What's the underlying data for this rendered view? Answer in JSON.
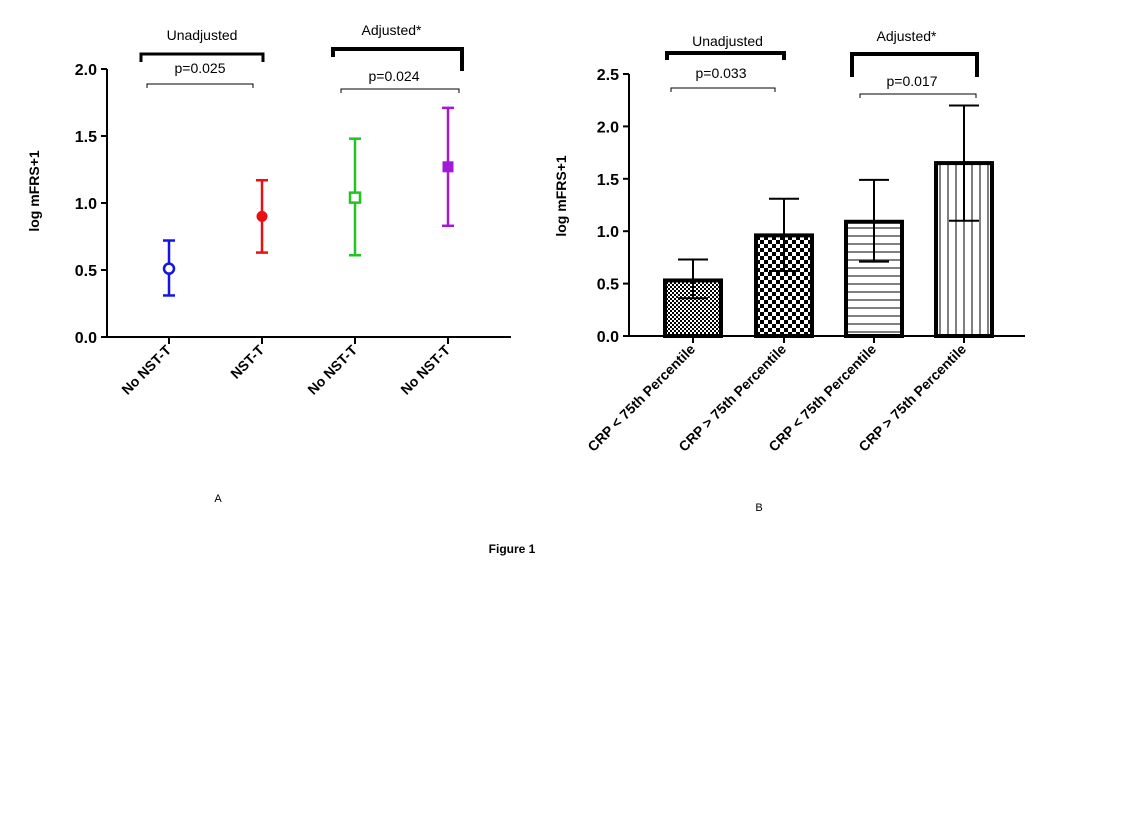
{
  "figure_caption": "Figure 1",
  "chart_data": [
    {
      "panel_label": "A",
      "type": "scatter",
      "subtype": "mean-with-error-bars",
      "ylabel": "log mFRS+1",
      "ylim": [
        0,
        2.0
      ],
      "yticks": [
        "0.0",
        "0.5",
        "1.0",
        "1.5",
        "2.0"
      ],
      "categories": [
        "No NST-T",
        "NST-T",
        "No NST-T",
        "No NST-T"
      ],
      "values": [
        0.51,
        0.9,
        1.04,
        1.27
      ],
      "error_low": [
        0.31,
        0.63,
        0.61,
        0.83
      ],
      "error_high": [
        0.72,
        1.17,
        1.48,
        1.71
      ],
      "colors": [
        "#1414e6",
        "#e81010",
        "#22c322",
        "#a219d8"
      ],
      "markers": [
        "open-circle",
        "filled-circle",
        "open-square",
        "filled-square"
      ],
      "groups": [
        {
          "label": "Unadjusted",
          "p_value": "p=0.025",
          "from": 0,
          "to": 1
        },
        {
          "label": "Adjusted*",
          "p_value": "p=0.024",
          "from": 2,
          "to": 3
        }
      ]
    },
    {
      "panel_label": "B",
      "type": "bar",
      "ylabel": "log mFRS+1",
      "ylim": [
        0,
        2.5
      ],
      "yticks": [
        "0.0",
        "0.5",
        "1.0",
        "1.5",
        "2.0",
        "2.5"
      ],
      "categories": [
        "CRP < 75th Percentile",
        "CRP > 75th Percentile",
        "CRP < 75th Percentile",
        "CRP > 75th Percentile"
      ],
      "values": [
        0.53,
        0.96,
        1.09,
        1.65
      ],
      "error_low": [
        0.36,
        0.62,
        0.71,
        1.1
      ],
      "error_high": [
        0.73,
        1.31,
        1.49,
        2.2
      ],
      "patterns": [
        "fine-checker",
        "coarse-checker",
        "horizontal-lines",
        "vertical-lines"
      ],
      "groups": [
        {
          "label": "Unadjusted",
          "p_value": "p=0.033",
          "from": 0,
          "to": 1
        },
        {
          "label": "Adjusted*",
          "p_value": "p=0.017",
          "from": 2,
          "to": 3
        }
      ]
    }
  ]
}
